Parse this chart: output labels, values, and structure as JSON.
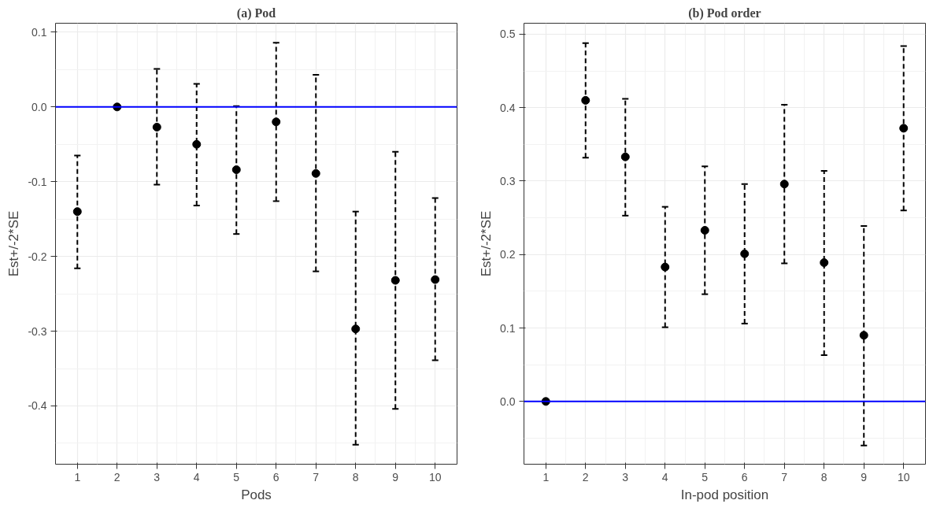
{
  "chart_data": [
    {
      "type": "scatter",
      "title": "(a) Pod",
      "xlabel": "Pods",
      "ylabel": "Est+/-2*SE",
      "x": [
        1,
        2,
        3,
        4,
        5,
        6,
        7,
        8,
        9,
        10
      ],
      "series": [
        {
          "color": "#000000",
          "values": [
            -0.14,
            0,
            -0.027,
            -0.05,
            -0.084,
            -0.02,
            -0.089,
            -0.297,
            -0.232,
            -0.231
          ],
          "errors": [
            [
              -0.216,
              -0.065
            ],
            null,
            [
              -0.104,
              0.051
            ],
            [
              -0.132,
              0.031
            ],
            [
              -0.17,
              0.001
            ],
            [
              -0.126,
              0.086
            ],
            [
              -0.22,
              0.043
            ],
            [
              -0.452,
              -0.14
            ],
            [
              -0.404,
              -0.06
            ],
            [
              -0.339,
              -0.122
            ]
          ]
        }
      ],
      "xlim": [
        0.45,
        10.55
      ],
      "xticks": [
        1,
        2,
        3,
        4,
        5,
        6,
        7,
        8,
        9,
        10
      ],
      "ylim": [
        -0.478,
        0.112
      ],
      "yticks": [
        -0.4,
        -0.3,
        -0.2,
        -0.1,
        {
          "value": 0,
          "label": "0.0"
        },
        0.1
      ],
      "ref_lines": [
        {
          "axis": "y",
          "value": 0,
          "color": "#0000ff"
        }
      ],
      "grid": true,
      "marker": "circle",
      "line_style": "dashed"
    },
    {
      "type": "scatter",
      "title": "(b) Pod order",
      "xlabel": "In-pod position",
      "ylabel": "Est+/-2*SE",
      "x": [
        1,
        2,
        3,
        4,
        5,
        6,
        7,
        8,
        9,
        10
      ],
      "series": [
        {
          "color": "#000000",
          "values": [
            0,
            0.41,
            0.333,
            0.183,
            0.233,
            0.201,
            0.296,
            0.189,
            0.09,
            0.372
          ],
          "errors": [
            null,
            [
              0.332,
              0.488
            ],
            [
              0.253,
              0.412
            ],
            [
              0.101,
              0.265
            ],
            [
              0.146,
              0.32
            ],
            [
              0.106,
              0.296
            ],
            [
              0.188,
              0.404
            ],
            [
              0.063,
              0.314
            ],
            [
              -0.06,
              0.239
            ],
            [
              0.26,
              0.484
            ]
          ]
        }
      ],
      "xlim": [
        0.45,
        10.55
      ],
      "xticks": [
        1,
        2,
        3,
        4,
        5,
        6,
        7,
        8,
        9,
        10
      ],
      "ylim": [
        -0.0855,
        0.515
      ],
      "yticks": [
        {
          "value": 0,
          "label": "0.0"
        },
        0.1,
        0.2,
        0.3,
        0.4,
        0.5
      ],
      "ref_lines": [
        {
          "axis": "y",
          "value": 0,
          "color": "#0000ff"
        }
      ],
      "grid": true,
      "marker": "circle",
      "line_style": "dashed"
    }
  ]
}
